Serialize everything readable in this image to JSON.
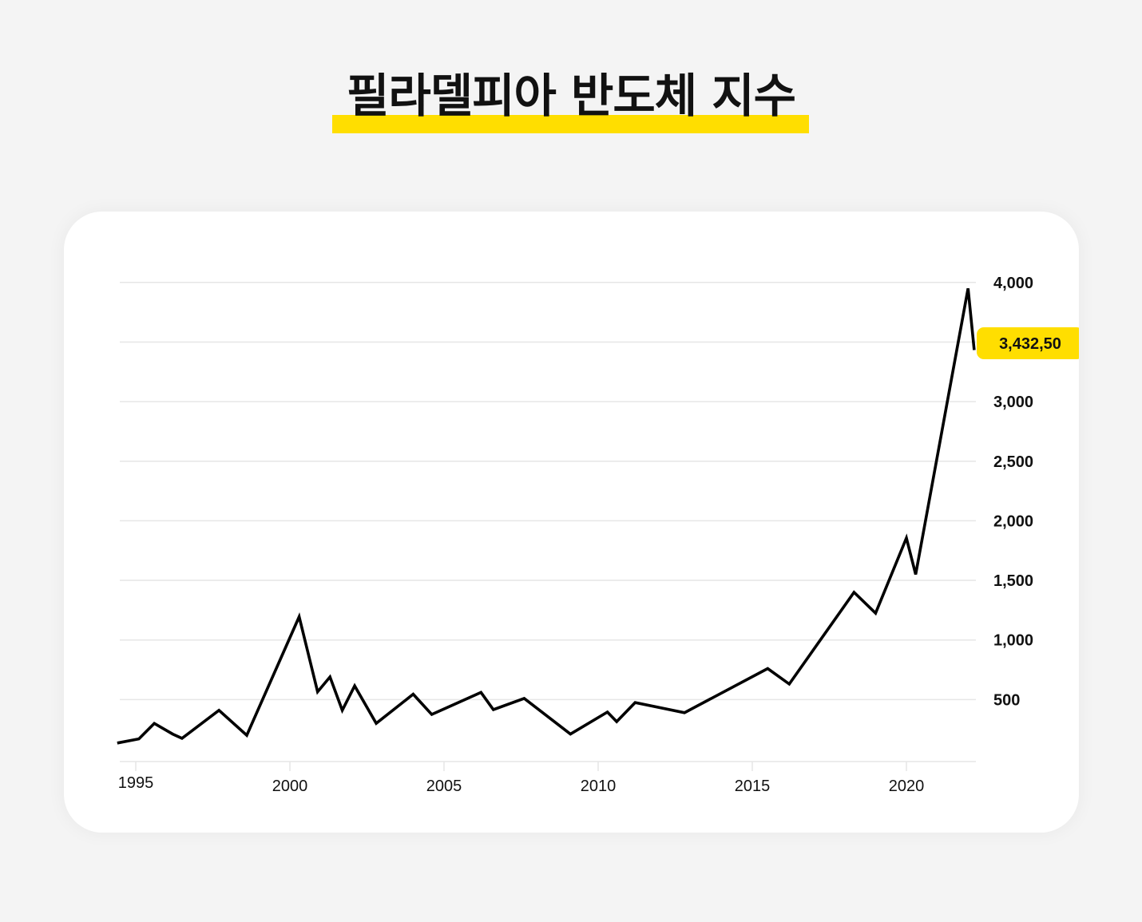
{
  "page": {
    "title": "필라델피아 반도체 지수",
    "accent_color": "#ffde00",
    "background_color": "#f4f4f4",
    "card_color": "#ffffff",
    "line_color": "#000000",
    "grid_color": "#e6e6e6"
  },
  "current_value_badge": {
    "label": "3,432,50",
    "value": 3432.5
  },
  "chart_data": {
    "type": "line",
    "title": "필라델피아 반도체 지수",
    "xlabel": "",
    "ylabel": "",
    "xlim": [
      1994.4,
      2022.2
    ],
    "ylim": [
      0,
      4000
    ],
    "grid": true,
    "y_axis_position": "right",
    "legend": null,
    "x_ticks": [
      1995,
      2000,
      2005,
      2010,
      2015,
      2020
    ],
    "x_tick_labels": [
      "1995",
      "2000",
      "2005",
      "2010",
      "2015",
      "2020"
    ],
    "y_ticks": [
      500,
      1000,
      1500,
      2000,
      2500,
      3000,
      3500,
      4000
    ],
    "y_tick_labels": [
      "500",
      "1,000",
      "1,500",
      "2,000",
      "2,500",
      "3,000",
      "",
      "4,000"
    ],
    "annotations": [
      {
        "text": "3,432,50",
        "x": 2022.2,
        "y": 3432.5,
        "style": "yellow-badge"
      }
    ],
    "series": [
      {
        "name": "필라델피아 반도체 지수",
        "x": [
          1994.4,
          1995.1,
          1995.6,
          1996.2,
          1996.5,
          1997.7,
          1998.6,
          2000.3,
          2000.9,
          2001.3,
          2001.7,
          2002.1,
          2002.8,
          2004.0,
          2004.6,
          2006.2,
          2006.6,
          2007.6,
          2009.1,
          2010.3,
          2010.6,
          2011.2,
          2012.8,
          2015.5,
          2016.2,
          2018.3,
          2019.0,
          2020.0,
          2020.3,
          2022.0,
          2022.2
        ],
        "values": [
          135,
          170,
          300,
          210,
          175,
          410,
          200,
          1195,
          565,
          690,
          410,
          615,
          300,
          545,
          375,
          560,
          415,
          510,
          210,
          395,
          315,
          475,
          390,
          760,
          630,
          1400,
          1225,
          1855,
          1550,
          3950,
          3432.5
        ]
      }
    ]
  }
}
